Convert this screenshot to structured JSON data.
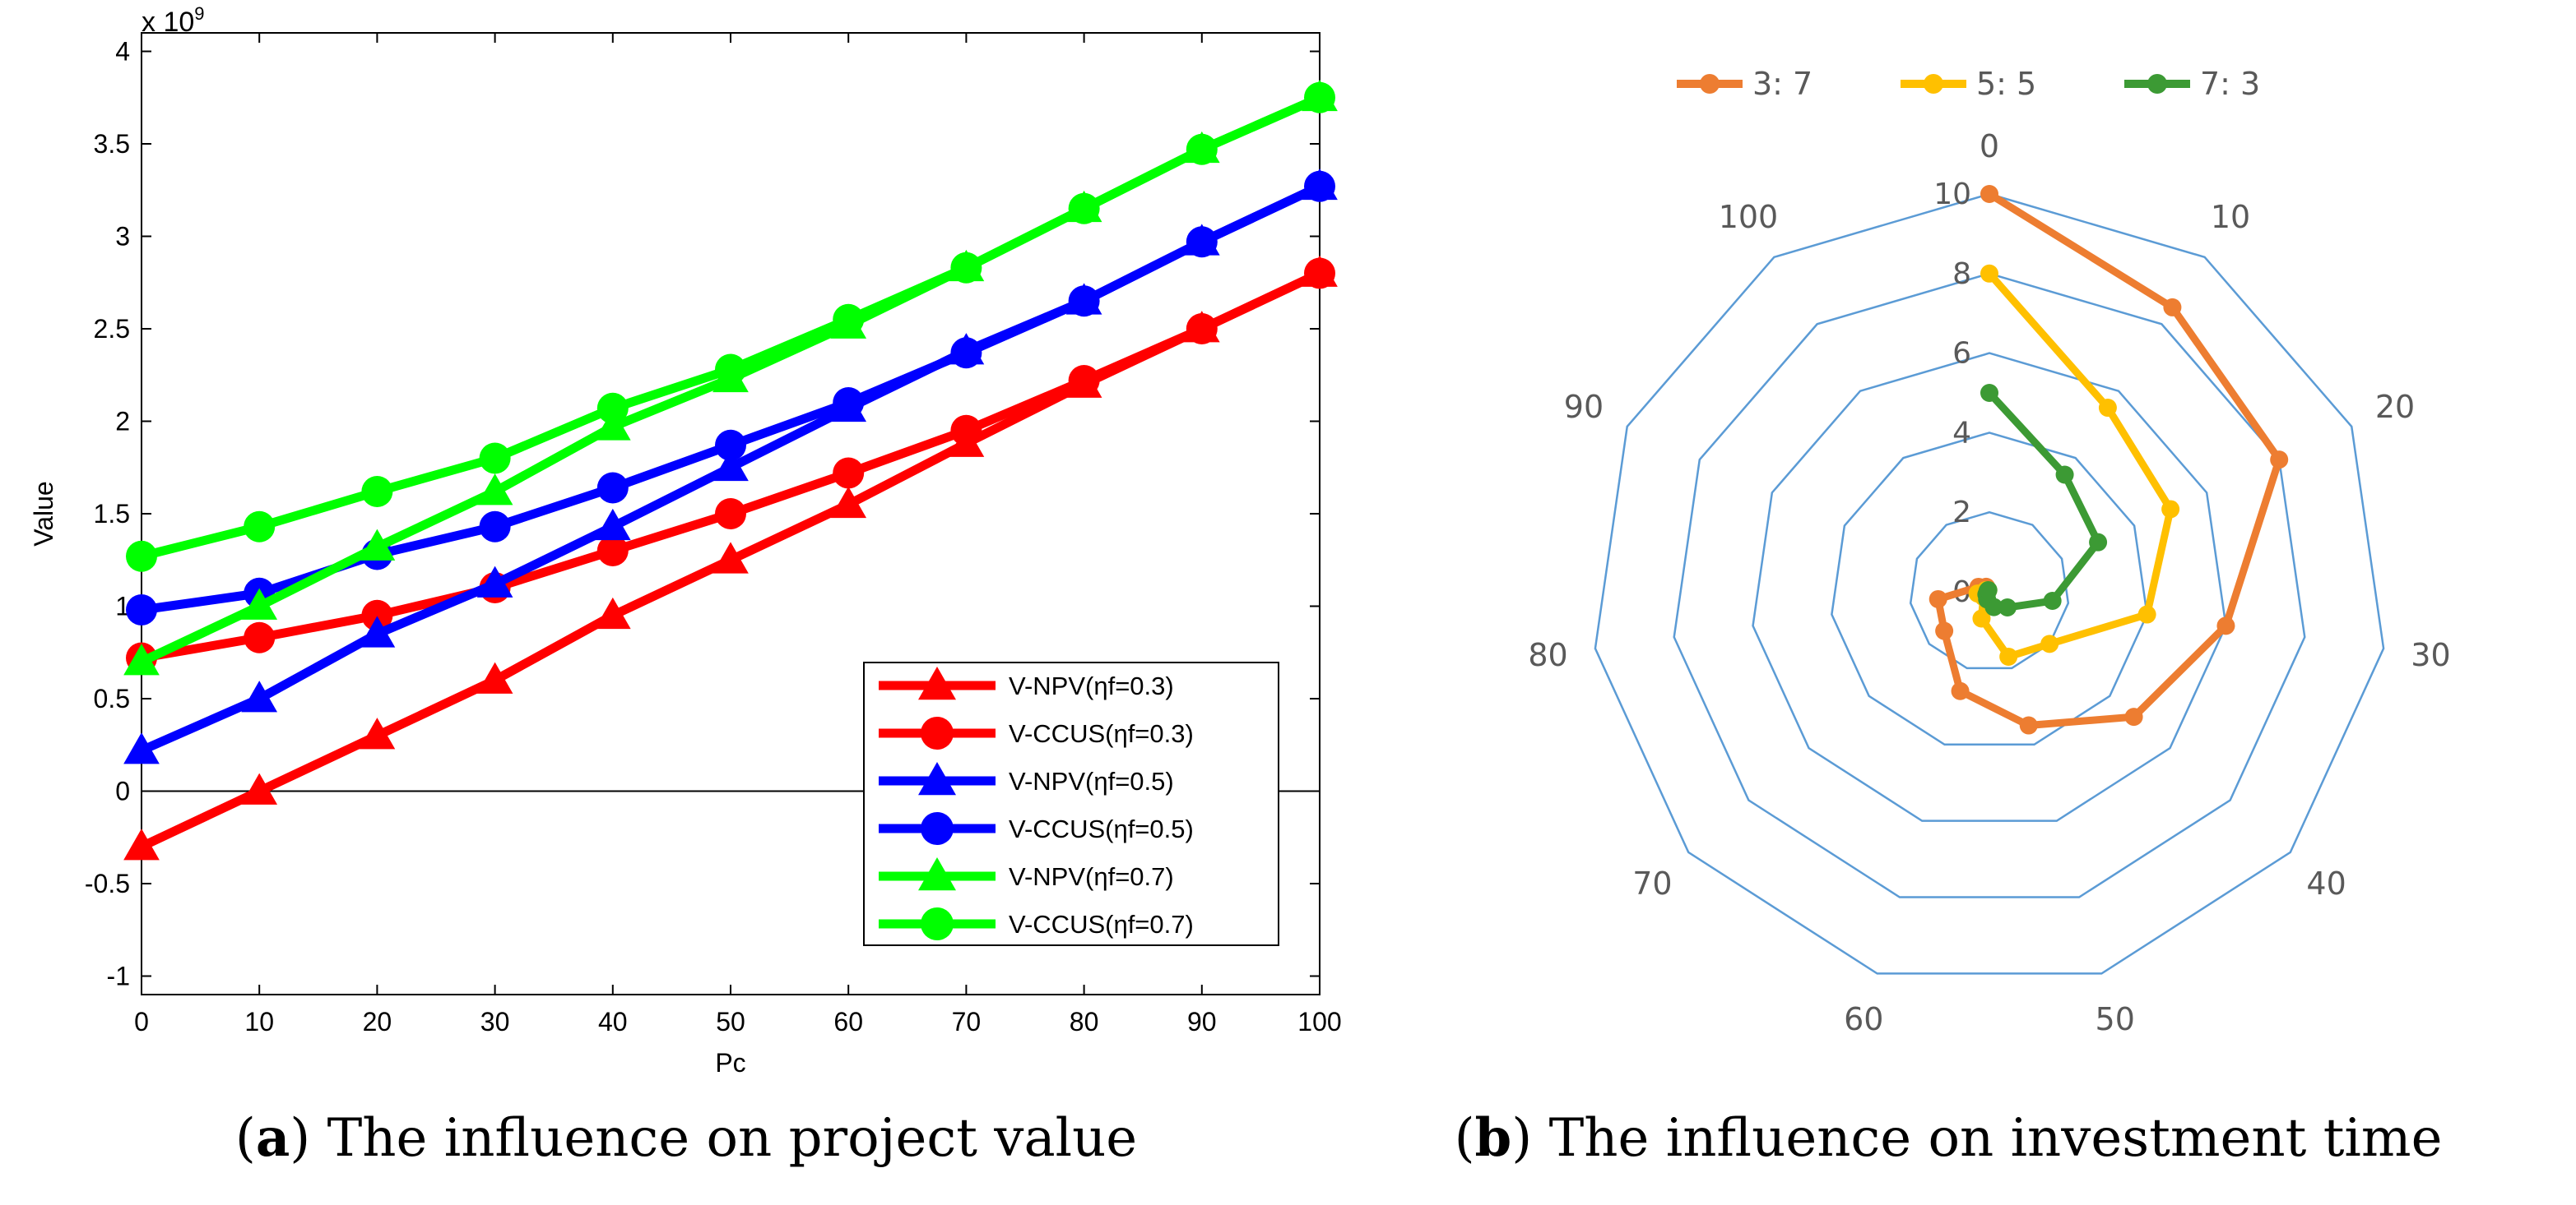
{
  "chart_data": [
    {
      "type": "line",
      "panel": "a",
      "title": "",
      "xlabel": "Pc",
      "ylabel": "Value",
      "y_exponent_label": "x 10^9",
      "xlim": [
        0,
        100
      ],
      "ylim": [
        -1.1,
        4.1
      ],
      "xticks": [
        0,
        10,
        20,
        30,
        40,
        50,
        60,
        70,
        80,
        90,
        100
      ],
      "yticks": [
        -1,
        -0.5,
        0,
        0.5,
        1,
        1.5,
        2,
        2.5,
        3,
        3.5,
        4
      ],
      "ytick_labels": [
        "-1",
        "-0.5",
        "0",
        "0.5",
        "1",
        "1.5",
        "2",
        "2.5",
        "3",
        "3.5",
        "4"
      ],
      "x": [
        0,
        10,
        20,
        30,
        40,
        50,
        60,
        70,
        80,
        90,
        100
      ],
      "legend_position": "bottom-right",
      "series": [
        {
          "name": "V-NPV(ηf=0.3)",
          "color": "#ff0000",
          "marker": "triangle",
          "values": [
            -0.3,
            0.0,
            0.3,
            0.6,
            0.95,
            1.25,
            1.55,
            1.88,
            2.2,
            2.5,
            2.8
          ]
        },
        {
          "name": "V-CCUS(ηf=0.3)",
          "color": "#ff0000",
          "marker": "circle",
          "values": [
            0.72,
            0.83,
            0.95,
            1.1,
            1.3,
            1.5,
            1.72,
            1.95,
            2.22,
            2.5,
            2.8
          ]
        },
        {
          "name": "V-NPV(ηf=0.5)",
          "color": "#0000ff",
          "marker": "triangle",
          "values": [
            0.22,
            0.5,
            0.85,
            1.12,
            1.43,
            1.75,
            2.07,
            2.38,
            2.65,
            2.97,
            3.27
          ]
        },
        {
          "name": "V-CCUS(ηf=0.5)",
          "color": "#0000ff",
          "marker": "circle",
          "values": [
            0.98,
            1.07,
            1.28,
            1.43,
            1.64,
            1.87,
            2.1,
            2.37,
            2.65,
            2.97,
            3.27
          ]
        },
        {
          "name": "V-NPV(ηf=0.7)",
          "color": "#00ff00",
          "marker": "triangle",
          "values": [
            0.7,
            1.0,
            1.32,
            1.62,
            1.97,
            2.23,
            2.52,
            2.83,
            3.15,
            3.47,
            3.75
          ]
        },
        {
          "name": "V-CCUS(ηf=0.7)",
          "color": "#00ff00",
          "marker": "circle",
          "values": [
            1.27,
            1.43,
            1.62,
            1.8,
            2.07,
            2.28,
            2.55,
            2.83,
            3.15,
            3.47,
            3.75
          ]
        }
      ]
    },
    {
      "type": "radar",
      "panel": "b",
      "title": "",
      "categories": [
        "0",
        "10",
        "20",
        "30",
        "40",
        "50",
        "60",
        "70",
        "80",
        "90",
        "100"
      ],
      "rmax": 10,
      "ring_values": [
        0,
        2,
        4,
        6,
        8,
        10
      ],
      "ring_labels": [
        "0",
        "2",
        "4",
        "6",
        "8",
        "10"
      ],
      "legend_position": "top",
      "series": [
        {
          "name": "3: 7",
          "color": "#ed7d31",
          "values": [
            10,
            8.5,
            8.0,
            6.0,
            4.8,
            3.5,
            2.6,
            1.5,
            1.3,
            0.3,
            0.15
          ]
        },
        {
          "name": "5: 5",
          "color": "#ffc000",
          "values": [
            8.0,
            5.5,
            5.0,
            4.0,
            2.0,
            1.7,
            0.7,
            0.2,
            0.3,
            0.1,
            0.05
          ]
        },
        {
          "name": "7: 3",
          "color": "#3c9a34",
          "values": [
            5.0,
            3.5,
            3.0,
            1.6,
            0.6,
            0.4,
            0.2,
            0.1,
            0.05,
            0.05,
            0.05
          ]
        }
      ]
    }
  ],
  "captions": {
    "a": {
      "letter": "a",
      "text": ") The influence on project value",
      "open": "("
    },
    "b": {
      "letter": "b",
      "text": ") The influence on investment time",
      "open": "("
    }
  },
  "exponent": {
    "base": "x 10",
    "power": "9"
  }
}
